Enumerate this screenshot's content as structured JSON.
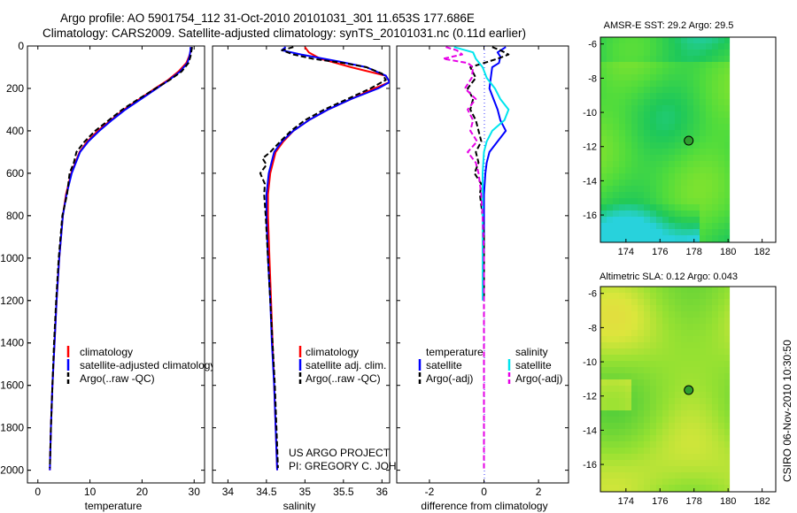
{
  "title": {
    "line1": "Argo profile: AO 5901754_112 31-Oct-2010 20101031_301 11.653S 177.686E",
    "line2": "Climatology: CARS2009. Satellite-adjusted climatology: synTS_20101031.nc (0.11d earlier)"
  },
  "credit": {
    "project": "US ARGO PROJECT",
    "pi": "PI: GREGORY C. JOHNSON",
    "timestamp": "CSIRO 06-Nov-2010 10:30:50"
  },
  "colors": {
    "red": "#ff0000",
    "blue": "#0000ff",
    "black": "#000000",
    "cyan": "#00e5ee",
    "magenta": "#e600e6"
  },
  "chart_data": [
    {
      "id": "temperature",
      "type": "line",
      "xlabel": "temperature",
      "ylabel": "",
      "xlim": [
        -2,
        32
      ],
      "ylim": [
        0,
        2060
      ],
      "xticks": [
        0,
        10,
        20,
        30
      ],
      "xtick_labels": [
        "0",
        "10",
        "20",
        "30"
      ],
      "yticks": [
        0,
        200,
        400,
        600,
        800,
        1000,
        1200,
        1400,
        1600,
        1800,
        2000
      ],
      "ytick_labels": [
        "0",
        "200",
        "400",
        "600",
        "800",
        "1000",
        "1200",
        "1400",
        "1600",
        "1800",
        "2000"
      ],
      "legend": [
        "climatology",
        "satellite-adjusted climatology",
        "Argo(..raw -QC)"
      ],
      "series": [
        {
          "name": "climatology",
          "color": "red",
          "dash": false,
          "depth": [
            5,
            20,
            50,
            80,
            120,
            160,
            200,
            250,
            300,
            350,
            400,
            450,
            500,
            600,
            700,
            800,
            1000,
            1200,
            1400,
            1600,
            1800,
            2000
          ],
          "values": [
            29.5,
            29.4,
            29.0,
            28.5,
            27.0,
            25.0,
            22.5,
            19.5,
            16.5,
            14.0,
            11.5,
            9.5,
            8.0,
            6.4,
            5.4,
            4.8,
            4.1,
            3.6,
            3.2,
            2.8,
            2.5,
            2.3
          ]
        },
        {
          "name": "satellite-adjusted climatology",
          "color": "blue",
          "dash": false,
          "depth": [
            5,
            20,
            50,
            80,
            120,
            160,
            200,
            250,
            300,
            350,
            400,
            450,
            500,
            600,
            700,
            800,
            1000,
            1200,
            1400,
            1600,
            1800,
            2000
          ],
          "values": [
            29.3,
            29.3,
            29.1,
            28.7,
            27.3,
            25.2,
            22.8,
            19.8,
            16.8,
            14.2,
            11.8,
            9.7,
            8.1,
            6.5,
            5.5,
            4.8,
            4.1,
            3.6,
            3.2,
            2.8,
            2.5,
            2.3
          ]
        },
        {
          "name": "Argo(..raw -QC)",
          "color": "black",
          "dash": true,
          "depth": [
            5,
            20,
            50,
            80,
            120,
            160,
            200,
            250,
            300,
            350,
            400,
            450,
            500,
            550,
            600,
            700,
            800,
            1000,
            1200,
            1400,
            1600,
            1800,
            1990
          ],
          "values": [
            29.6,
            29.5,
            29.3,
            28.9,
            27.6,
            25.3,
            22.6,
            19.3,
            16.2,
            13.6,
            11.0,
            9.0,
            7.4,
            6.9,
            6.1,
            5.6,
            4.7,
            4.0,
            3.5,
            3.1,
            2.8,
            2.5,
            2.3
          ]
        }
      ]
    },
    {
      "id": "salinity",
      "type": "line",
      "xlabel": "salinity",
      "ylabel": "",
      "xlim": [
        33.8,
        36.1
      ],
      "ylim": [
        0,
        2060
      ],
      "xticks": [
        34,
        34.5,
        35,
        35.5,
        36
      ],
      "xtick_labels": [
        "34",
        "34.5",
        "35",
        "35.5",
        "36"
      ],
      "legend": [
        "climatology",
        "satellite adj. clim.",
        "Argo(..raw -QC)"
      ],
      "series": [
        {
          "name": "climatology",
          "color": "red",
          "dash": false,
          "depth": [
            5,
            30,
            60,
            100,
            140,
            170,
            200,
            250,
            300,
            350,
            400,
            450,
            500,
            600,
            700,
            800,
            1000,
            1200,
            1400,
            1600,
            1800,
            2000
          ],
          "values": [
            35.0,
            35.05,
            35.2,
            35.6,
            36.05,
            36.1,
            35.9,
            35.6,
            35.3,
            35.05,
            34.85,
            34.72,
            34.62,
            34.55,
            34.52,
            34.52,
            34.54,
            34.56,
            34.58,
            34.6,
            34.62,
            34.64
          ]
        },
        {
          "name": "satellite adj. clim.",
          "color": "blue",
          "dash": false,
          "depth": [
            5,
            20,
            40,
            70,
            100,
            140,
            170,
            200,
            250,
            300,
            350,
            400,
            450,
            500,
            600,
            700,
            800,
            1000,
            1200,
            1400,
            1600,
            1800,
            2000
          ],
          "values": [
            34.75,
            34.7,
            34.95,
            35.4,
            35.8,
            36.05,
            36.1,
            35.95,
            35.6,
            35.3,
            35.05,
            34.85,
            34.7,
            34.6,
            34.53,
            34.5,
            34.5,
            34.52,
            34.55,
            34.57,
            34.6,
            34.62,
            34.64
          ]
        },
        {
          "name": "Argo(..raw -QC)",
          "color": "black",
          "dash": true,
          "depth": [
            5,
            20,
            40,
            60,
            80,
            100,
            130,
            160,
            200,
            250,
            300,
            350,
            400,
            450,
            500,
            530,
            560,
            600,
            650,
            700,
            800,
            1000,
            1200,
            1400,
            1600,
            1800,
            1990
          ],
          "values": [
            34.85,
            34.7,
            34.85,
            35.1,
            35.5,
            35.8,
            36.0,
            36.05,
            35.85,
            35.55,
            35.25,
            35.0,
            34.82,
            34.68,
            34.55,
            34.45,
            34.5,
            34.42,
            34.48,
            34.47,
            34.49,
            34.52,
            34.55,
            34.58,
            34.61,
            34.63,
            34.65
          ]
        }
      ]
    },
    {
      "id": "difference",
      "type": "line",
      "xlabel": "difference from climatology",
      "ylabel": "",
      "xlim": [
        -3.2,
        3.1
      ],
      "ylim": [
        0,
        2060
      ],
      "xticks": [
        -2,
        0,
        2
      ],
      "xtick_labels": [
        "-2",
        "0",
        "2"
      ],
      "legend_headers": [
        "temperature",
        "salinity"
      ],
      "legend": [
        "satellite",
        "Argo(-adj)",
        "satellite",
        "Argo(-adj)"
      ],
      "series": [
        {
          "name": "temperature satellite",
          "color": "blue",
          "dash": false,
          "depth": [
            5,
            30,
            50,
            80,
            100,
            150,
            200,
            250,
            300,
            350,
            400,
            450,
            500,
            550,
            600,
            700,
            800,
            1000,
            1200
          ],
          "values": [
            0.8,
            0.5,
            0.6,
            0.55,
            0.3,
            0.25,
            0.2,
            0.35,
            0.5,
            0.6,
            0.8,
            0.5,
            0.2,
            0.1,
            0.05,
            0.0,
            0.0,
            0.0,
            0.0
          ]
        },
        {
          "name": "temperature Argo(-adj)",
          "color": "black",
          "dash": true,
          "depth": [
            5,
            20,
            40,
            60,
            100,
            150,
            200,
            250,
            300,
            350,
            400,
            450,
            500,
            550,
            600,
            650,
            700,
            800,
            900,
            1000,
            1100,
            1200
          ],
          "values": [
            0.3,
            0.6,
            0.9,
            0.5,
            -0.5,
            -0.3,
            -0.6,
            -0.4,
            -0.5,
            -0.3,
            -0.2,
            -0.1,
            -0.3,
            -0.2,
            -0.35,
            -0.1,
            -0.15,
            -0.05,
            0.0,
            0.0,
            0.0,
            0.0
          ]
        },
        {
          "name": "salinity satellite",
          "color": "cyan",
          "dash": false,
          "depth": [
            5,
            30,
            60,
            100,
            150,
            200,
            250,
            300,
            350,
            400,
            450,
            500,
            600,
            700,
            800,
            1000,
            1200
          ],
          "values": [
            -1.1,
            -0.4,
            -0.3,
            -0.05,
            0.1,
            0.4,
            0.6,
            0.9,
            0.75,
            0.3,
            0.1,
            0.0,
            -0.05,
            -0.05,
            -0.05,
            -0.05,
            -0.05
          ]
        },
        {
          "name": "salinity Argo(-adj)",
          "color": "magenta",
          "dash": true,
          "depth": [
            5,
            20,
            40,
            60,
            80,
            100,
            150,
            200,
            250,
            300,
            350,
            400,
            450,
            500,
            550,
            600,
            650,
            700,
            800,
            1000,
            1200,
            1400,
            1600,
            1800,
            2000
          ],
          "values": [
            -1.4,
            -1.0,
            -0.8,
            -1.5,
            -0.6,
            -0.4,
            -0.45,
            -0.7,
            -0.3,
            -0.6,
            -0.4,
            -0.5,
            -0.25,
            -0.6,
            -0.3,
            -0.2,
            -0.15,
            -0.1,
            -0.05,
            0.0,
            0.0,
            0.0,
            0.0,
            0.0,
            0.0
          ]
        }
      ]
    },
    {
      "id": "amsr-sst",
      "type": "heatmap",
      "title": "AMSR-E SST: 29.2 Argo: 29.5",
      "xlim": [
        172.5,
        182.8
      ],
      "ylim": [
        -17.6,
        -5.6
      ],
      "xticks": [
        174,
        176,
        178,
        180,
        182
      ],
      "xtick_labels": [
        "174",
        "176",
        "178",
        "180",
        "182"
      ],
      "yticks": [
        -6,
        -8,
        -10,
        -12,
        -14,
        -16
      ],
      "ytick_labels": [
        "-6",
        "-8",
        "-10",
        "-12",
        "-14",
        "-16"
      ],
      "data_east_limit": 180.1,
      "profile_marker": {
        "lon": 177.686,
        "lat": -11.653
      }
    },
    {
      "id": "altimetric-sla",
      "type": "heatmap",
      "title": "Altimetric SLA: 0.12 Argo: 0.043",
      "xlim": [
        172.5,
        182.8
      ],
      "ylim": [
        -17.6,
        -5.6
      ],
      "xticks": [
        174,
        176,
        178,
        180,
        182
      ],
      "xtick_labels": [
        "174",
        "176",
        "178",
        "180",
        "182"
      ],
      "yticks": [
        -6,
        -8,
        -10,
        -12,
        -14,
        -16
      ],
      "ytick_labels": [
        "-6",
        "-8",
        "-10",
        "-12",
        "-14",
        "-16"
      ],
      "data_east_limit": 180.1,
      "profile_marker": {
        "lon": 177.686,
        "lat": -11.653
      }
    }
  ]
}
